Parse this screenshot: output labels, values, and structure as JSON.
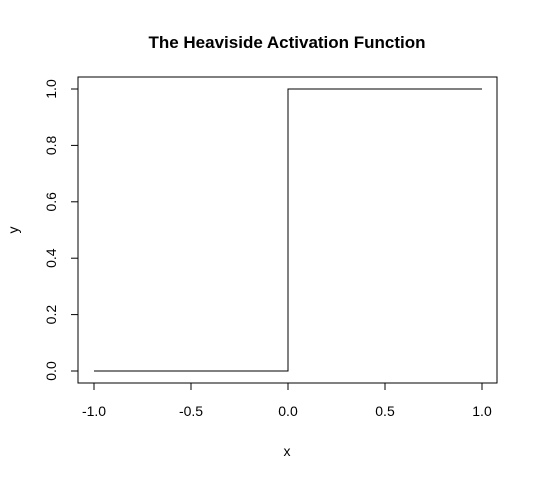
{
  "chart_data": {
    "type": "line",
    "title": "The Heaviside Activation Function",
    "xlabel": "x",
    "ylabel": "y",
    "xlim": [
      -1.0,
      1.0
    ],
    "ylim": [
      0.0,
      1.0
    ],
    "x_ticks": [
      "-1.0",
      "-0.5",
      "0.0",
      "0.5",
      "1.0"
    ],
    "y_ticks": [
      "0.0",
      "0.2",
      "0.4",
      "0.6",
      "0.8",
      "1.0"
    ],
    "x_tick_values": [
      -1.0,
      -0.5,
      0.0,
      0.5,
      1.0
    ],
    "y_tick_values": [
      0.0,
      0.2,
      0.4,
      0.6,
      0.8,
      1.0
    ],
    "grid": false,
    "line_color": "#000000",
    "series": [
      {
        "x": [
          -1.0,
          0.0,
          0.0,
          1.0
        ],
        "y": [
          0.0,
          0.0,
          1.0,
          1.0
        ]
      }
    ]
  }
}
